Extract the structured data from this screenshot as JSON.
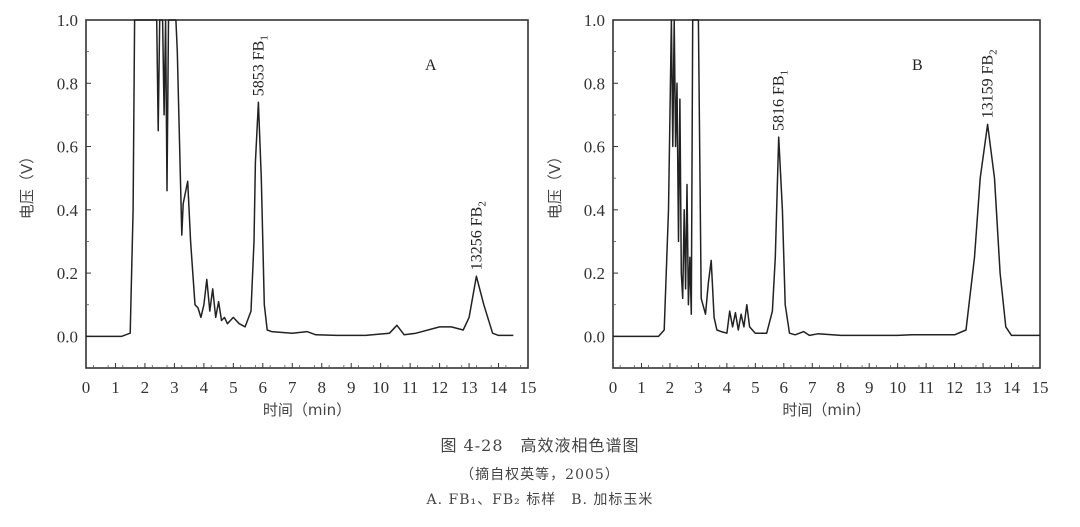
{
  "caption": {
    "title": "图 4-28　高效液相色谱图",
    "source": "（摘自权英等，2005）",
    "legend": "A. FB₁、FB₂ 标样　B. 加标玉米"
  },
  "chart_data": [
    {
      "type": "line",
      "panel_label": "A",
      "title": "",
      "xlabel": "时间（min）",
      "ylabel": "电压（V）",
      "xlim": [
        0,
        15
      ],
      "ylim": [
        -0.1,
        1.0
      ],
      "xticks": [
        0,
        1,
        2,
        3,
        4,
        5,
        6,
        7,
        8,
        9,
        10,
        11,
        12,
        13,
        14,
        15
      ],
      "yticks": [
        "0.0",
        "0.2",
        "0.4",
        "0.6",
        "0.8",
        "1.0"
      ],
      "grid": false,
      "annotations": [
        {
          "text": "5853 FB1",
          "x": 5.85,
          "y": 0.74
        },
        {
          "text": "13256 FB2",
          "x": 13.26,
          "y": 0.19
        }
      ],
      "x": [
        0,
        1.2,
        1.5,
        1.6,
        1.65,
        2.4,
        2.45,
        2.5,
        2.55,
        2.6,
        2.65,
        2.7,
        2.75,
        2.8,
        3.05,
        3.1,
        3.25,
        3.3,
        3.45,
        3.55,
        3.7,
        3.8,
        3.9,
        4.0,
        4.1,
        4.2,
        4.3,
        4.4,
        4.5,
        4.6,
        4.7,
        4.8,
        5.0,
        5.2,
        5.4,
        5.6,
        5.7,
        5.75,
        5.85,
        5.95,
        6.05,
        6.15,
        6.3,
        7.0,
        7.5,
        7.8,
        8.5,
        9.5,
        10.3,
        10.55,
        10.8,
        11.2,
        12.0,
        12.4,
        12.8,
        13.0,
        13.25,
        13.5,
        13.8,
        14.0,
        14.5
      ],
      "values": [
        0,
        0,
        0.01,
        0.4,
        1.0,
        1.0,
        0.65,
        1.0,
        1.0,
        1.0,
        0.7,
        1.0,
        0.46,
        1.0,
        1.0,
        0.9,
        0.32,
        0.42,
        0.49,
        0.3,
        0.1,
        0.09,
        0.06,
        0.1,
        0.18,
        0.08,
        0.15,
        0.06,
        0.11,
        0.05,
        0.06,
        0.04,
        0.06,
        0.04,
        0.03,
        0.08,
        0.3,
        0.55,
        0.74,
        0.5,
        0.1,
        0.02,
        0.015,
        0.01,
        0.015,
        0.005,
        0.003,
        0.003,
        0.01,
        0.035,
        0.005,
        0.01,
        0.03,
        0.03,
        0.02,
        0.06,
        0.19,
        0.1,
        0.01,
        0.003,
        0.003
      ]
    },
    {
      "type": "line",
      "panel_label": "B",
      "title": "",
      "xlabel": "时间（min）",
      "ylabel": "电压（V）",
      "xlim": [
        0,
        15
      ],
      "ylim": [
        -0.1,
        1.0
      ],
      "xticks": [
        0,
        1,
        2,
        3,
        4,
        5,
        6,
        7,
        8,
        9,
        10,
        11,
        12,
        13,
        14,
        15
      ],
      "yticks": [
        "0.0",
        "0.2",
        "0.4",
        "0.6",
        "0.8",
        "1.0"
      ],
      "grid": false,
      "annotations": [
        {
          "text": "5816 FB1",
          "x": 5.82,
          "y": 0.63
        },
        {
          "text": "13159 FB2",
          "x": 13.16,
          "y": 0.67
        }
      ],
      "x": [
        0,
        1.6,
        1.8,
        1.95,
        2.05,
        2.1,
        2.15,
        2.2,
        2.25,
        2.3,
        2.35,
        2.4,
        2.45,
        2.5,
        2.55,
        2.6,
        2.65,
        2.7,
        2.75,
        2.8,
        2.9,
        3.0,
        3.1,
        3.25,
        3.35,
        3.45,
        3.55,
        3.65,
        3.8,
        4.0,
        4.1,
        4.2,
        4.3,
        4.4,
        4.5,
        4.6,
        4.7,
        4.8,
        5.0,
        5.4,
        5.6,
        5.7,
        5.82,
        5.95,
        6.05,
        6.2,
        6.4,
        6.7,
        6.9,
        7.2,
        8.0,
        10.0,
        10.5,
        12.0,
        12.4,
        12.7,
        12.9,
        13.16,
        13.4,
        13.6,
        13.8,
        14.0,
        15.0
      ],
      "values": [
        0,
        0,
        0.02,
        0.4,
        1.0,
        0.6,
        1.0,
        0.6,
        0.8,
        0.3,
        0.75,
        0.2,
        0.12,
        0.4,
        0.15,
        0.48,
        0.1,
        0.25,
        0.07,
        1.0,
        1.0,
        1.0,
        0.12,
        0.07,
        0.17,
        0.24,
        0.06,
        0.02,
        0.015,
        0.01,
        0.08,
        0.03,
        0.075,
        0.02,
        0.07,
        0.03,
        0.1,
        0.03,
        0.01,
        0.01,
        0.08,
        0.25,
        0.63,
        0.4,
        0.1,
        0.01,
        0.005,
        0.015,
        0.003,
        0.008,
        0.003,
        0.003,
        0.005,
        0.005,
        0.02,
        0.25,
        0.5,
        0.67,
        0.5,
        0.2,
        0.03,
        0.003,
        0.003
      ]
    }
  ]
}
